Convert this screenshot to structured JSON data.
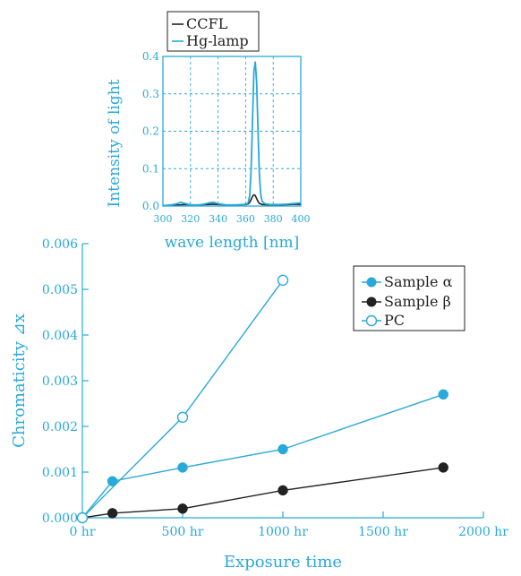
{
  "colors": {
    "cyan": "#29a9d8",
    "black": "#222222",
    "white": "#ffffff"
  },
  "chart_data": [
    {
      "type": "line",
      "xlabel": "wave length [nm]",
      "ylabel": "Intensity of light",
      "xlim": [
        300,
        400
      ],
      "ylim": [
        0,
        0.4
      ],
      "xticks": [
        "300",
        "320",
        "340",
        "360",
        "380",
        "400"
      ],
      "yticks": [
        "0.0",
        "0.1",
        "0.2",
        "0.3",
        "0.4"
      ],
      "grid": true,
      "legend_position": "top",
      "series": [
        {
          "name": "CCFL",
          "color": "#222222",
          "x": [
            300,
            306,
            312,
            316,
            320,
            326,
            332,
            336,
            340,
            346,
            352,
            356,
            360,
            362,
            363,
            364,
            365,
            366,
            367,
            368,
            369,
            370,
            372,
            376,
            380,
            386,
            392,
            396,
            400
          ],
          "y": [
            0.001,
            0.002,
            0.003,
            0.004,
            0.003,
            0.003,
            0.004,
            0.005,
            0.004,
            0.003,
            0.003,
            0.003,
            0.004,
            0.006,
            0.01,
            0.018,
            0.026,
            0.03,
            0.028,
            0.02,
            0.012,
            0.007,
            0.004,
            0.003,
            0.003,
            0.003,
            0.004,
            0.005,
            0.004
          ]
        },
        {
          "name": "Hg-lamp",
          "color": "#29a9d8",
          "x": [
            300,
            306,
            310,
            313,
            316,
            320,
            326,
            330,
            334,
            337,
            340,
            346,
            352,
            358,
            361,
            362,
            363,
            364,
            365,
            366,
            367,
            368,
            369,
            370,
            371,
            372,
            374,
            378,
            384,
            390,
            396,
            400
          ],
          "y": [
            0.001,
            0.003,
            0.006,
            0.01,
            0.007,
            0.003,
            0.003,
            0.005,
            0.009,
            0.01,
            0.006,
            0.003,
            0.003,
            0.004,
            0.006,
            0.01,
            0.03,
            0.1,
            0.23,
            0.36,
            0.385,
            0.33,
            0.2,
            0.08,
            0.03,
            0.012,
            0.006,
            0.004,
            0.004,
            0.005,
            0.007,
            0.008
          ]
        }
      ]
    },
    {
      "type": "line",
      "xlabel": "Exposure time",
      "ylabel": "Chromaticity ⊿x",
      "xlim": [
        0,
        2000
      ],
      "ylim": [
        0,
        0.006
      ],
      "xticks": [
        "0 hr",
        "500 hr",
        "1000 hr",
        "1500 hr",
        "2000 hr"
      ],
      "yticks": [
        "0.000",
        "0.001",
        "0.002",
        "0.003",
        "0.004",
        "0.005",
        "0.006"
      ],
      "grid": false,
      "legend_position": "top-right",
      "series": [
        {
          "name": "Sample α",
          "color": "#29a9d8",
          "marker": "filled-circle",
          "x": [
            0,
            150,
            500,
            1000,
            1800
          ],
          "y": [
            0,
            0.0008,
            0.0011,
            0.0015,
            0.0027
          ]
        },
        {
          "name": "Sample β",
          "color": "#222222",
          "marker": "filled-circle",
          "x": [
            0,
            150,
            500,
            1000,
            1800
          ],
          "y": [
            0,
            0.0001,
            0.0002,
            0.0006,
            0.0011
          ]
        },
        {
          "name": "PC",
          "color": "#29a9d8",
          "marker": "open-circle",
          "x": [
            0,
            500,
            1000
          ],
          "y": [
            0,
            0.0022,
            0.0052
          ]
        }
      ]
    }
  ]
}
